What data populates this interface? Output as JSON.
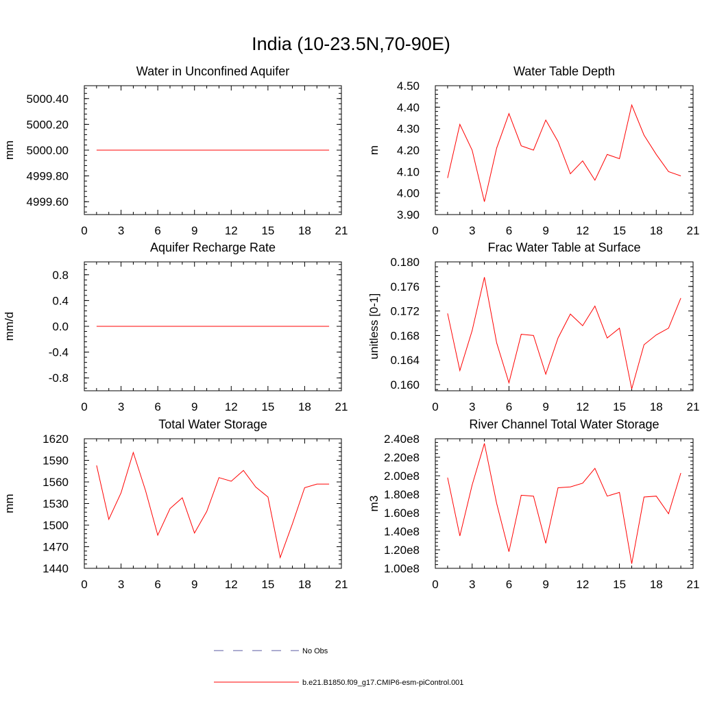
{
  "figure_title": "India (10-23.5N,70-90E)",
  "legend": [
    {
      "label": "No Obs",
      "color": "#5a5aa0",
      "style": "dashed"
    },
    {
      "label": "b.e21.B1850.f09_g17.CMIP6-esm-piControl.001",
      "color": "#ff0000",
      "style": "solid"
    }
  ],
  "chart_data": [
    {
      "type": "line",
      "title": "Water in Unconfined Aquifer",
      "ylabel": "mm",
      "xlim": [
        0,
        21
      ],
      "xticks": [
        "0",
        "3",
        "6",
        "9",
        "12",
        "15",
        "18",
        "21"
      ],
      "ylim": [
        4999.5,
        5000.5
      ],
      "yticks": [
        "4999.60",
        "4999.80",
        "5000.00",
        "5000.20",
        "5000.40"
      ],
      "x": [
        1,
        2,
        3,
        4,
        5,
        6,
        7,
        8,
        9,
        10,
        11,
        12,
        13,
        14,
        15,
        16,
        17,
        18,
        19,
        20
      ],
      "series": [
        {
          "name": "b.e21.B1850.f09_g17.CMIP6-esm-piControl.001",
          "color": "#ff0000",
          "values": [
            5000,
            5000,
            5000,
            5000,
            5000,
            5000,
            5000,
            5000,
            5000,
            5000,
            5000,
            5000,
            5000,
            5000,
            5000,
            5000,
            5000,
            5000,
            5000,
            5000
          ]
        }
      ]
    },
    {
      "type": "line",
      "title": "Water Table Depth",
      "ylabel": "m",
      "xlim": [
        0,
        21
      ],
      "xticks": [
        "0",
        "3",
        "6",
        "9",
        "12",
        "15",
        "18",
        "21"
      ],
      "ylim": [
        3.9,
        4.5
      ],
      "yticks": [
        "3.90",
        "4.00",
        "4.10",
        "4.20",
        "4.30",
        "4.40",
        "4.50"
      ],
      "x": [
        1,
        2,
        3,
        4,
        5,
        6,
        7,
        8,
        9,
        10,
        11,
        12,
        13,
        14,
        15,
        16,
        17,
        18,
        19,
        20
      ],
      "series": [
        {
          "name": "b.e21.B1850.f09_g17.CMIP6-esm-piControl.001",
          "color": "#ff0000",
          "values": [
            4.07,
            4.32,
            4.2,
            3.96,
            4.21,
            4.37,
            4.22,
            4.2,
            4.34,
            4.24,
            4.09,
            4.15,
            4.06,
            4.18,
            4.16,
            4.41,
            4.27,
            4.18,
            4.1,
            4.08
          ]
        }
      ]
    },
    {
      "type": "line",
      "title": "Aquifer Recharge Rate",
      "ylabel": "mm/d",
      "xlim": [
        0,
        21
      ],
      "xticks": [
        "0",
        "3",
        "6",
        "9",
        "12",
        "15",
        "18",
        "21"
      ],
      "ylim": [
        -1.0,
        1.0
      ],
      "yticks": [
        "-0.8",
        "-0.4",
        "0.0",
        "0.4",
        "0.8"
      ],
      "x": [
        1,
        2,
        3,
        4,
        5,
        6,
        7,
        8,
        9,
        10,
        11,
        12,
        13,
        14,
        15,
        16,
        17,
        18,
        19,
        20
      ],
      "series": [
        {
          "name": "b.e21.B1850.f09_g17.CMIP6-esm-piControl.001",
          "color": "#ff0000",
          "values": [
            0,
            0,
            0,
            0,
            0,
            0,
            0,
            0,
            0,
            0,
            0,
            0,
            0,
            0,
            0,
            0,
            0,
            0,
            0,
            0
          ]
        }
      ]
    },
    {
      "type": "line",
      "title": "Frac Water Table at Surface",
      "ylabel": "unitless [0-1]",
      "xlim": [
        0,
        21
      ],
      "xticks": [
        "0",
        "3",
        "6",
        "9",
        "12",
        "15",
        "18",
        "21"
      ],
      "ylim": [
        0.159,
        0.18
      ],
      "yticks": [
        "0.160",
        "0.164",
        "0.168",
        "0.172",
        "0.176",
        "0.180"
      ],
      "x": [
        1,
        2,
        3,
        4,
        5,
        6,
        7,
        8,
        9,
        10,
        11,
        12,
        13,
        14,
        15,
        16,
        17,
        18,
        19,
        20
      ],
      "series": [
        {
          "name": "b.e21.B1850.f09_g17.CMIP6-esm-piControl.001",
          "color": "#ff0000",
          "values": [
            0.1716,
            0.1623,
            0.1688,
            0.1775,
            0.1668,
            0.1603,
            0.1682,
            0.168,
            0.1617,
            0.1676,
            0.1715,
            0.1696,
            0.1728,
            0.1676,
            0.1692,
            0.1593,
            0.1665,
            0.1681,
            0.1692,
            0.1741
          ]
        }
      ]
    },
    {
      "type": "line",
      "title": "Total Water Storage",
      "ylabel": "mm",
      "xlim": [
        0,
        21
      ],
      "xticks": [
        "0",
        "3",
        "6",
        "9",
        "12",
        "15",
        "18",
        "21"
      ],
      "ylim": [
        1440,
        1620
      ],
      "yticks": [
        "1440",
        "1470",
        "1500",
        "1530",
        "1560",
        "1590",
        "1620"
      ],
      "x": [
        1,
        2,
        3,
        4,
        5,
        6,
        7,
        8,
        9,
        10,
        11,
        12,
        13,
        14,
        15,
        16,
        17,
        18,
        19,
        20
      ],
      "series": [
        {
          "name": "b.e21.B1850.f09_g17.CMIP6-esm-piControl.001",
          "color": "#ff0000",
          "values": [
            1583,
            1508,
            1545,
            1601,
            1548,
            1486,
            1523,
            1538,
            1489,
            1519,
            1566,
            1561,
            1576,
            1553,
            1539,
            1455,
            1502,
            1552,
            1557,
            1557
          ]
        }
      ]
    },
    {
      "type": "line",
      "title": "River Channel Total Water Storage",
      "ylabel": "m3",
      "xlim": [
        0,
        21
      ],
      "xticks": [
        "0",
        "3",
        "6",
        "9",
        "12",
        "15",
        "18",
        "21"
      ],
      "ylim": [
        100000000,
        240000000
      ],
      "yticks": [
        "1.00e8",
        "1.20e8",
        "1.40e8",
        "1.60e8",
        "1.80e8",
        "2.00e8",
        "2.20e8",
        "2.40e8"
      ],
      "x": [
        1,
        2,
        3,
        4,
        5,
        6,
        7,
        8,
        9,
        10,
        11,
        12,
        13,
        14,
        15,
        16,
        17,
        18,
        19,
        20
      ],
      "series": [
        {
          "name": "b.e21.B1850.f09_g17.CMIP6-esm-piControl.001",
          "color": "#ff0000",
          "values": [
            198000000,
            135000000,
            190000000,
            235000000,
            170000000,
            118000000,
            179000000,
            178000000,
            127000000,
            187000000,
            188000000,
            192000000,
            208000000,
            178000000,
            182000000,
            105000000,
            177000000,
            178000000,
            159000000,
            203000000
          ]
        }
      ]
    }
  ]
}
